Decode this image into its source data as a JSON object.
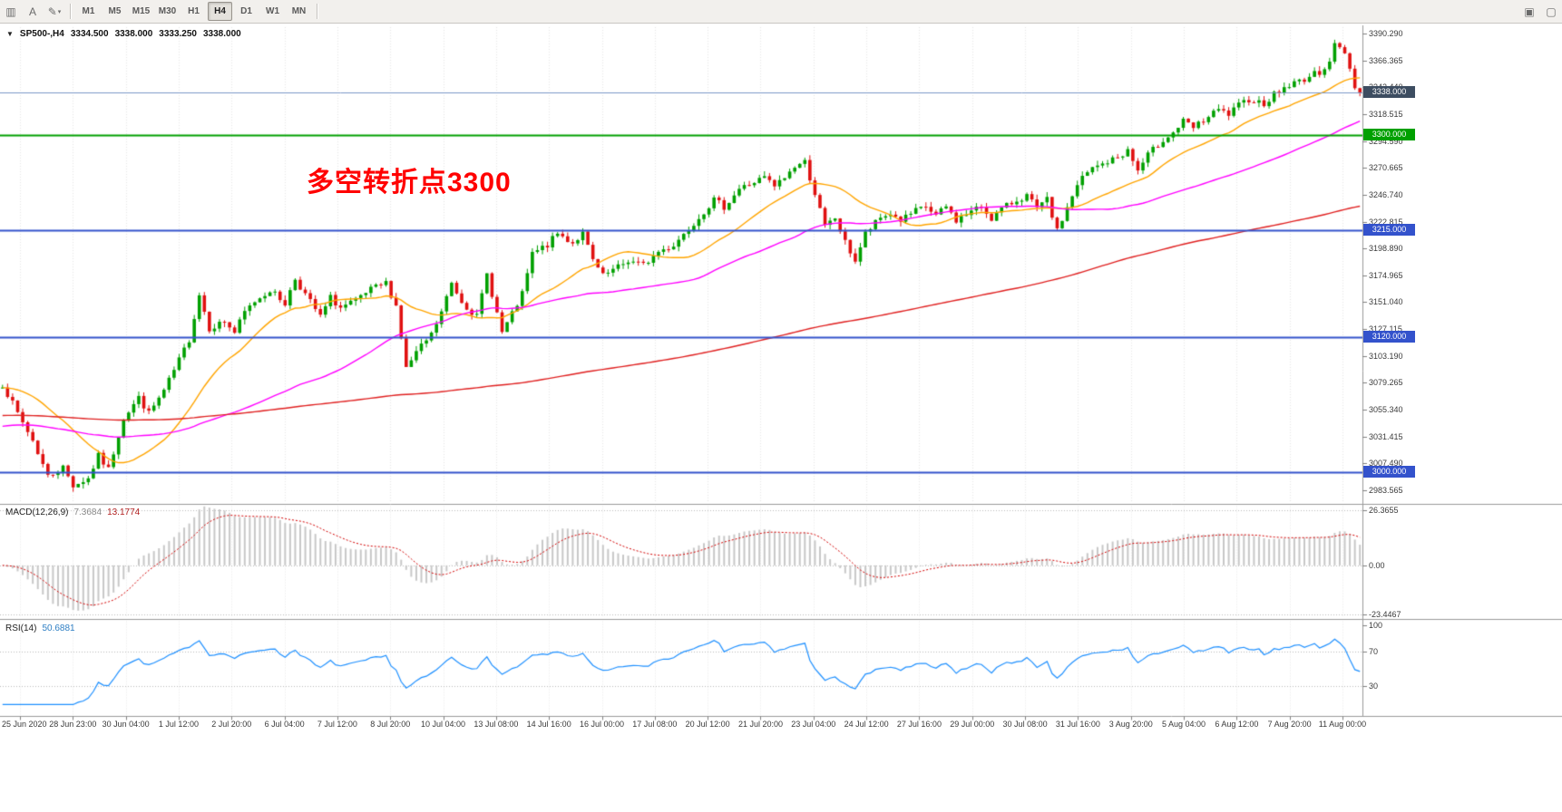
{
  "toolbar": {
    "caret_glyph": "▾",
    "left_tools": [
      {
        "name": "chart-cursor-tool",
        "glyph": "▥"
      },
      {
        "name": "text-label-tool",
        "glyph": "A"
      },
      {
        "name": "draw-tool",
        "glyph": "✎",
        "caret": true
      }
    ],
    "timeframes": [
      {
        "label": "M1",
        "active": false
      },
      {
        "label": "M5",
        "active": false
      },
      {
        "label": "M15",
        "active": false
      },
      {
        "label": "M30",
        "active": false
      },
      {
        "label": "H1",
        "active": false
      },
      {
        "label": "H4",
        "active": true
      },
      {
        "label": "D1",
        "active": false
      },
      {
        "label": "W1",
        "active": false
      },
      {
        "label": "MN",
        "active": false
      }
    ],
    "right_tools": [
      {
        "name": "window-box-tool",
        "glyph": "▣"
      },
      {
        "name": "window-restore-tool",
        "glyph": "▢"
      }
    ]
  },
  "header": {
    "collapse_glyph": "▼",
    "symbol": "SP500-,H4",
    "open": "3334.500",
    "high": "3338.000",
    "low": "3333.250",
    "close": "3338.000"
  },
  "annotation": {
    "text": "多空转折点3300",
    "color": "#ff0000"
  },
  "price_axis": {
    "ticks": [
      "3390.290",
      "3366.365",
      "3342.440",
      "3318.515",
      "3294.590",
      "3270.665",
      "3246.740",
      "3222.815",
      "3198.890",
      "3174.965",
      "3151.040",
      "3127.115",
      "3103.190",
      "3079.265",
      "3055.340",
      "3031.415",
      "3007.490",
      "2983.565"
    ]
  },
  "levels": [
    {
      "label": "3338.000",
      "price": 3338.0,
      "line_color": "#7b99c7",
      "badge_color": "#3d4d61",
      "line_width": 1,
      "role": "current-price"
    },
    {
      "label": "3300.000",
      "price": 3300.0,
      "line_color": "#00a000",
      "badge_color": "#00a000",
      "line_width": 2,
      "role": "horizontal-line"
    },
    {
      "label": "3215.000",
      "price": 3215.0,
      "line_color": "#3352cc",
      "badge_color": "#3352cc",
      "line_width": 2,
      "role": "horizontal-line"
    },
    {
      "label": "3120.000",
      "price": 3120.0,
      "line_color": "#3352cc",
      "badge_color": "#3352cc",
      "line_width": 2,
      "role": "horizontal-line"
    },
    {
      "label": "3000.000",
      "price": 3000.0,
      "line_color": "#3352cc",
      "badge_color": "#3352cc",
      "line_width": 2,
      "role": "horizontal-line"
    }
  ],
  "indicators": {
    "macd": {
      "name": "MACD(12,26,9)",
      "value_main": "7.3684",
      "value_signal": "13.1774",
      "axis_ticks": [
        "26.3655",
        "0.00",
        "-23.4467"
      ],
      "max": 26.3655,
      "min": -23.4467,
      "histogram_color": "#c8c8c8",
      "signal_color": "#d40000"
    },
    "rsi": {
      "name": "RSI(14)",
      "value": "50.6881",
      "axis_ticks": [
        "100",
        "70",
        "30"
      ],
      "levels": [
        70,
        30
      ],
      "line_color": "#1e90ff"
    }
  },
  "time_axis": {
    "labels": [
      "25 Jun 2020",
      "28 Jun 23:00",
      "30 Jun 04:00",
      "1 Jul 12:00",
      "2 Jul 20:00",
      "6 Jul 04:00",
      "7 Jul 12:00",
      "8 Jul 20:00",
      "10 Jul 04:00",
      "13 Jul 08:00",
      "14 Jul 16:00",
      "16 Jul 00:00",
      "17 Jul 08:00",
      "20 Jul 12:00",
      "21 Jul 20:00",
      "23 Jul 04:00",
      "24 Jul 12:00",
      "27 Jul 16:00",
      "29 Jul 00:00",
      "30 Jul 08:00",
      "31 Jul 16:00",
      "3 Aug 20:00",
      "5 Aug 04:00",
      "6 Aug 12:00",
      "7 Aug 20:00",
      "11 Aug 00:00"
    ]
  },
  "chart_data": {
    "type": "candlestick",
    "symbol": "SP500-",
    "timeframe": "H4",
    "title": "SP500-,H4",
    "ylim": [
      2983.565,
      3390.29
    ],
    "num_candles": 270,
    "anchors_close": [
      [
        0,
        3078
      ],
      [
        3,
        3052
      ],
      [
        6,
        3028
      ],
      [
        9,
        2996
      ],
      [
        12,
        3004
      ],
      [
        14,
        2988
      ],
      [
        17,
        2994
      ],
      [
        19,
        3014
      ],
      [
        21,
        3002
      ],
      [
        24,
        3048
      ],
      [
        27,
        3066
      ],
      [
        29,
        3052
      ],
      [
        32,
        3072
      ],
      [
        34,
        3090
      ],
      [
        37,
        3118
      ],
      [
        39,
        3158
      ],
      [
        41,
        3128
      ],
      [
        44,
        3134
      ],
      [
        46,
        3124
      ],
      [
        48,
        3142
      ],
      [
        50,
        3152
      ],
      [
        53,
        3162
      ],
      [
        56,
        3150
      ],
      [
        58,
        3172
      ],
      [
        60,
        3158
      ],
      [
        63,
        3138
      ],
      [
        65,
        3155
      ],
      [
        67,
        3146
      ],
      [
        70,
        3152
      ],
      [
        73,
        3162
      ],
      [
        76,
        3168
      ],
      [
        78,
        3148
      ],
      [
        80,
        3092
      ],
      [
        82,
        3106
      ],
      [
        85,
        3122
      ],
      [
        87,
        3142
      ],
      [
        89,
        3168
      ],
      [
        91,
        3152
      ],
      [
        94,
        3138
      ],
      [
        96,
        3176
      ],
      [
        99,
        3124
      ],
      [
        101,
        3140
      ],
      [
        103,
        3158
      ],
      [
        105,
        3194
      ],
      [
        108,
        3202
      ],
      [
        110,
        3212
      ],
      [
        113,
        3204
      ],
      [
        115,
        3212
      ],
      [
        117,
        3188
      ],
      [
        119,
        3174
      ],
      [
        122,
        3182
      ],
      [
        124,
        3188
      ],
      [
        127,
        3184
      ],
      [
        130,
        3196
      ],
      [
        133,
        3202
      ],
      [
        135,
        3212
      ],
      [
        137,
        3222
      ],
      [
        139,
        3232
      ],
      [
        141,
        3242
      ],
      [
        143,
        3236
      ],
      [
        146,
        3252
      ],
      [
        148,
        3256
      ],
      [
        151,
        3262
      ],
      [
        153,
        3254
      ],
      [
        155,
        3262
      ],
      [
        157,
        3272
      ],
      [
        159,
        3276
      ],
      [
        161,
        3248
      ],
      [
        163,
        3218
      ],
      [
        165,
        3226
      ],
      [
        167,
        3204
      ],
      [
        169,
        3188
      ],
      [
        171,
        3212
      ],
      [
        174,
        3226
      ],
      [
        176,
        3230
      ],
      [
        178,
        3224
      ],
      [
        181,
        3232
      ],
      [
        183,
        3236
      ],
      [
        185,
        3228
      ],
      [
        187,
        3236
      ],
      [
        189,
        3224
      ],
      [
        192,
        3232
      ],
      [
        194,
        3236
      ],
      [
        196,
        3226
      ],
      [
        198,
        3234
      ],
      [
        201,
        3242
      ],
      [
        203,
        3246
      ],
      [
        205,
        3234
      ],
      [
        207,
        3242
      ],
      [
        209,
        3214
      ],
      [
        212,
        3246
      ],
      [
        214,
        3262
      ],
      [
        216,
        3270
      ],
      [
        218,
        3274
      ],
      [
        221,
        3280
      ],
      [
        223,
        3286
      ],
      [
        225,
        3268
      ],
      [
        227,
        3282
      ],
      [
        230,
        3296
      ],
      [
        232,
        3302
      ],
      [
        234,
        3312
      ],
      [
        236,
        3306
      ],
      [
        239,
        3316
      ],
      [
        241,
        3322
      ],
      [
        243,
        3318
      ],
      [
        245,
        3326
      ],
      [
        247,
        3332
      ],
      [
        250,
        3328
      ],
      [
        252,
        3336
      ],
      [
        254,
        3342
      ],
      [
        256,
        3346
      ],
      [
        259,
        3352
      ],
      [
        261,
        3356
      ],
      [
        263,
        3366
      ],
      [
        264,
        3380
      ],
      [
        266,
        3374
      ],
      [
        268,
        3344
      ],
      [
        269,
        3338
      ]
    ],
    "up_color": "#00a000",
    "down_color": "#e01010",
    "moving_averages": [
      {
        "period": 20,
        "color": "#ffa500",
        "pad": null
      },
      {
        "period": 60,
        "color": "#ff00ff",
        "pad": 3040
      },
      {
        "period": 200,
        "color": "#e02020",
        "pad": 3050
      }
    ],
    "noise_seed": 7,
    "close_noise": 3.0,
    "wick_noise": 4.5,
    "grid_color": "#e7e7e7",
    "separator_color": "#9a9a9a"
  }
}
